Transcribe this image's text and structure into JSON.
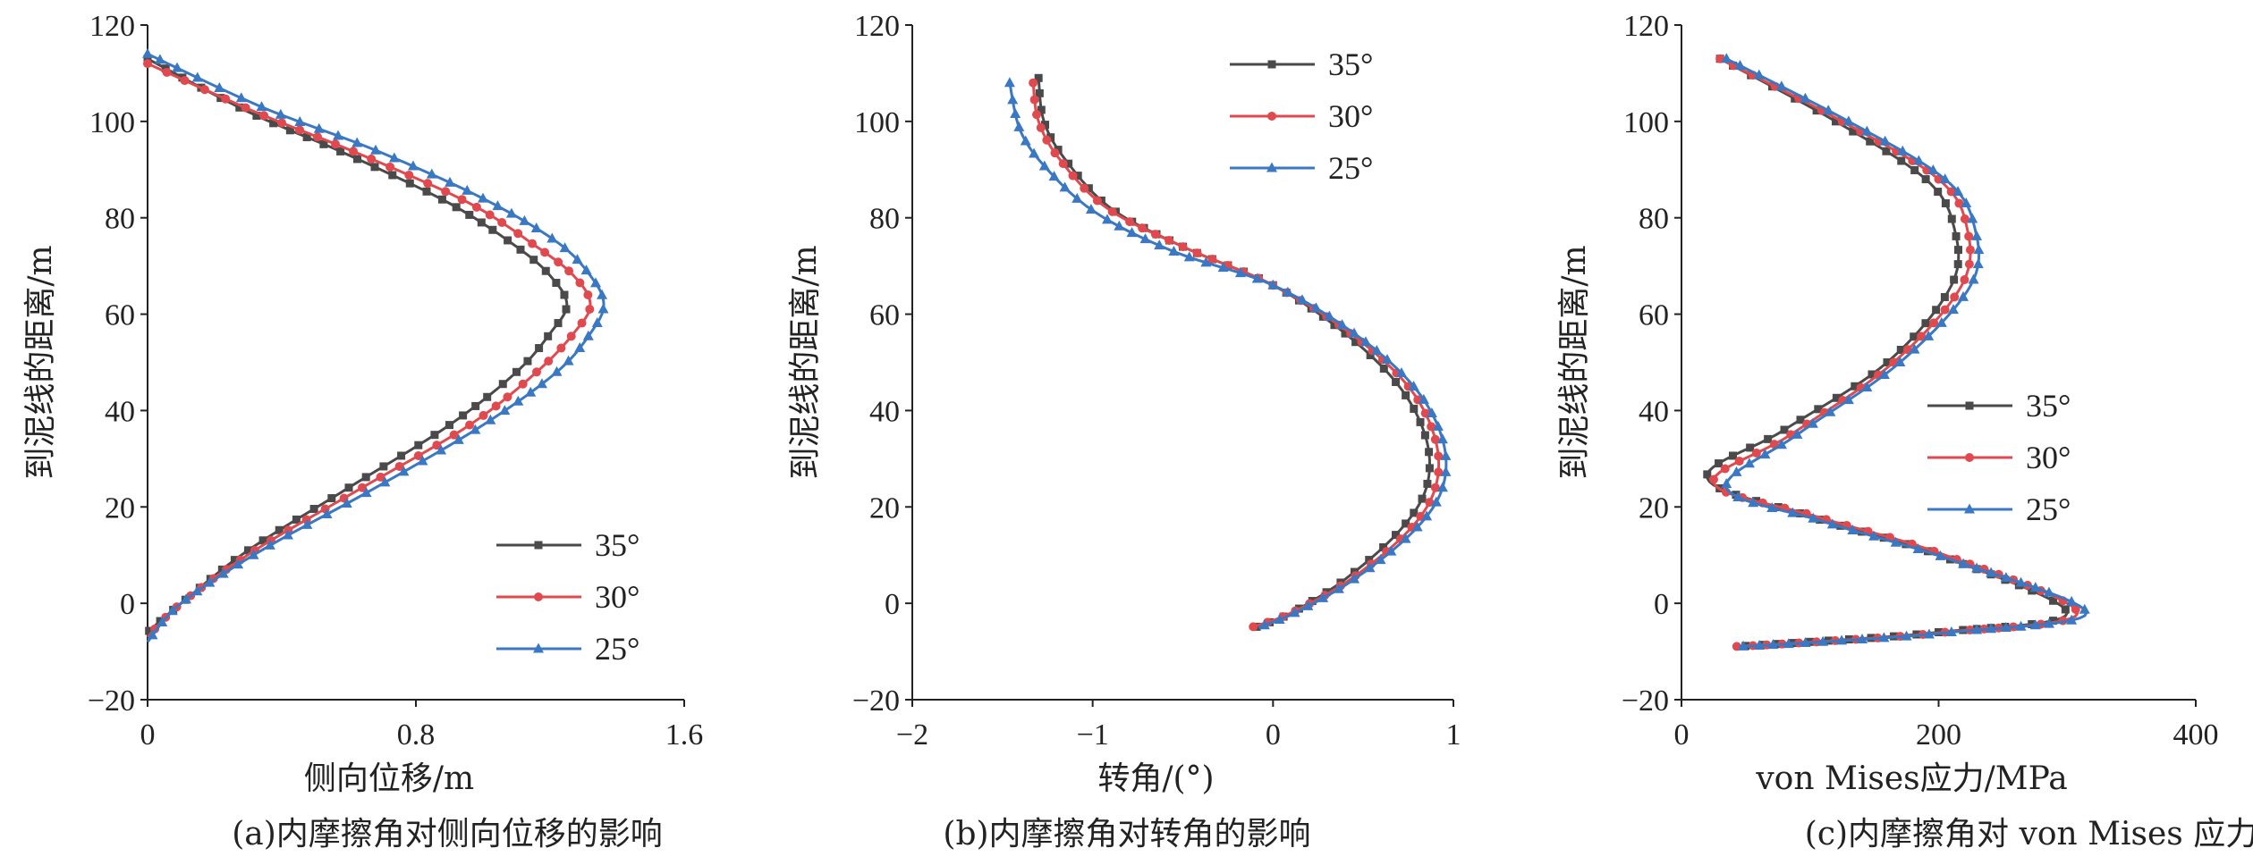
{
  "colors": {
    "35": "#4a4a4a",
    "30": "#e04a4f",
    "25": "#3a78c3"
  },
  "chart_data": [
    {
      "type": "line",
      "xlabel": "侧向位移/m",
      "ylabel": "到泥线的距离/m",
      "caption": "(a)内摩擦角对侧向位移的影响",
      "xlim": [
        0,
        1.6
      ],
      "ylim": [
        -20,
        120
      ],
      "xticks": [
        "0",
        "0.8",
        "1.6"
      ],
      "yticks": [
        "−20",
        "0",
        "20",
        "40",
        "60",
        "80",
        "100",
        "120"
      ],
      "legend_position": "bottom-right",
      "series": [
        {
          "name": "35°",
          "marker": "square",
          "x": [
            0,
            0.3,
            0.6,
            0.9,
            1.1,
            1.2,
            1.25,
            1.2,
            1.1,
            0.9,
            0.6,
            0.3,
            0.1,
            0
          ],
          "y": [
            113,
            102,
            93,
            83,
            74,
            68,
            62,
            56,
            48,
            37,
            24,
            11,
            0,
            -6
          ]
        },
        {
          "name": "30°",
          "marker": "circle",
          "x": [
            0,
            0.32,
            0.64,
            0.96,
            1.16,
            1.27,
            1.32,
            1.27,
            1.16,
            0.96,
            0.64,
            0.32,
            0.1,
            0
          ],
          "y": [
            112,
            102,
            93,
            83,
            74,
            68,
            62,
            56,
            48,
            37,
            24,
            11,
            0,
            -7
          ]
        },
        {
          "name": "25°",
          "marker": "triangle",
          "x": [
            0,
            0.34,
            0.68,
            1.0,
            1.22,
            1.32,
            1.36,
            1.32,
            1.22,
            1.0,
            0.68,
            0.34,
            0.1,
            0
          ],
          "y": [
            114,
            103,
            94,
            84,
            75,
            68,
            62,
            56,
            48,
            37,
            24,
            11,
            0,
            -8
          ]
        }
      ]
    },
    {
      "type": "line",
      "xlabel": "转角/(°)",
      "ylabel": "到泥线的距离/m",
      "caption": "(b)内摩擦角对转角的影响",
      "xlim": [
        -2,
        1
      ],
      "ylim": [
        -20,
        120
      ],
      "xticks": [
        "−2",
        "−1",
        "0",
        "1"
      ],
      "yticks": [
        "−20",
        "0",
        "20",
        "40",
        "60",
        "80",
        "100",
        "120"
      ],
      "legend_position": "top-right",
      "series": [
        {
          "name": "35°",
          "marker": "square",
          "x": [
            -1.3,
            -1.27,
            -1.15,
            -0.9,
            -0.5,
            0,
            0.4,
            0.7,
            0.85,
            0.85,
            0.7,
            0.4,
            0.1,
            -0.1
          ],
          "y": [
            109,
            100,
            92,
            82,
            74,
            66,
            56,
            45,
            34,
            24,
            15,
            5,
            -2,
            -5
          ]
        },
        {
          "name": "30°",
          "marker": "circle",
          "x": [
            -1.33,
            -1.3,
            -1.18,
            -0.92,
            -0.5,
            0,
            0.43,
            0.75,
            0.9,
            0.9,
            0.75,
            0.43,
            0.1,
            -0.12
          ],
          "y": [
            108,
            100,
            92,
            82,
            74,
            66,
            56,
            45,
            34,
            24,
            15,
            5,
            -2,
            -5
          ]
        },
        {
          "name": "25°",
          "marker": "triangle",
          "x": [
            -1.46,
            -1.4,
            -1.25,
            -0.98,
            -0.55,
            0,
            0.45,
            0.78,
            0.94,
            0.94,
            0.78,
            0.45,
            0.12,
            -0.08
          ],
          "y": [
            108,
            98,
            90,
            81,
            73,
            66,
            56,
            45,
            34,
            24,
            15,
            5,
            -2,
            -5
          ]
        }
      ]
    },
    {
      "type": "line",
      "xlabel": "von Mises应力/MPa",
      "ylabel": "到泥线的距离/m",
      "caption": "(c)内摩擦角对 von Mises 应力的影响",
      "xlim": [
        0,
        400
      ],
      "ylim": [
        -20,
        120
      ],
      "xticks": [
        "0",
        "200",
        "400"
      ],
      "yticks": [
        "−20",
        "0",
        "20",
        "40",
        "60",
        "80",
        "100",
        "120"
      ],
      "legend_position": "right-middle",
      "series": [
        {
          "name": "35°",
          "marker": "square",
          "x": [
            30,
            120,
            190,
            212,
            210,
            160,
            80,
            20,
            100,
            200,
            300,
            200,
            100,
            40
          ],
          "y": [
            113,
            100,
            88,
            78,
            66,
            50,
            36,
            26,
            18,
            10,
            -2,
            -6,
            -8,
            -9
          ]
        },
        {
          "name": "30°",
          "marker": "circle",
          "x": [
            30,
            125,
            200,
            222,
            218,
            165,
            85,
            25,
            105,
            205,
            308,
            205,
            105,
            40
          ],
          "y": [
            113,
            100,
            88,
            78,
            66,
            50,
            35,
            25,
            18,
            10,
            -2,
            -6,
            -8,
            -9
          ]
        },
        {
          "name": "25°",
          "marker": "triangle",
          "x": [
            35,
            130,
            205,
            228,
            225,
            170,
            90,
            35,
            110,
            210,
            315,
            210,
            110,
            45
          ],
          "y": [
            113,
            100,
            88,
            78,
            66,
            50,
            35,
            24,
            17,
            9,
            -2,
            -6,
            -8,
            -9
          ]
        }
      ]
    }
  ]
}
